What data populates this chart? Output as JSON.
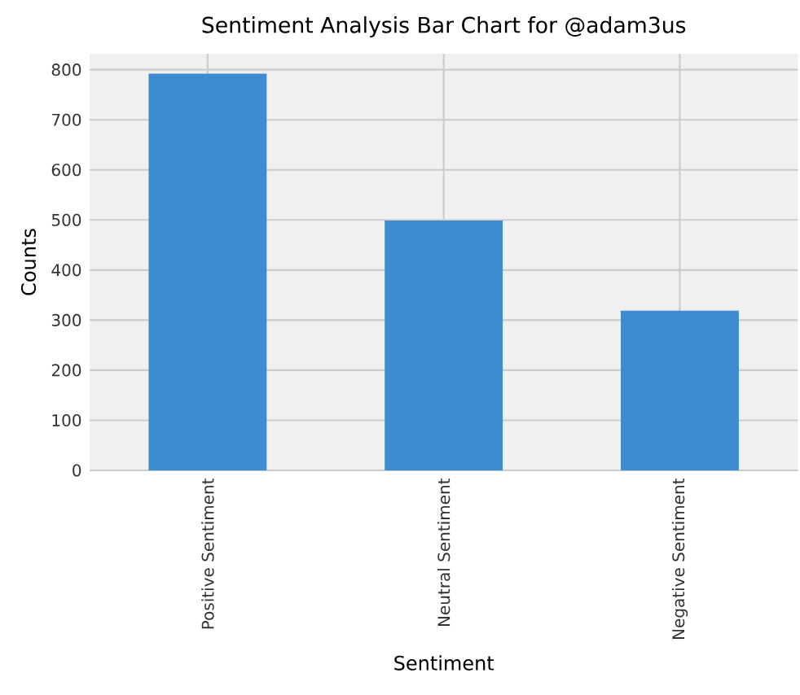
{
  "chart_data": {
    "type": "bar",
    "title": "Sentiment Analysis Bar Chart for @adam3us",
    "xlabel": "Sentiment",
    "ylabel": "Counts",
    "categories": [
      "Positive Sentiment",
      "Neutral Sentiment",
      "Negative Sentiment"
    ],
    "values": [
      792,
      499,
      319
    ],
    "color": "#3e8ccf",
    "ylim": [
      0,
      832
    ],
    "yticks": [
      0,
      100,
      200,
      300,
      400,
      500,
      600,
      700,
      800
    ],
    "grid": true
  }
}
